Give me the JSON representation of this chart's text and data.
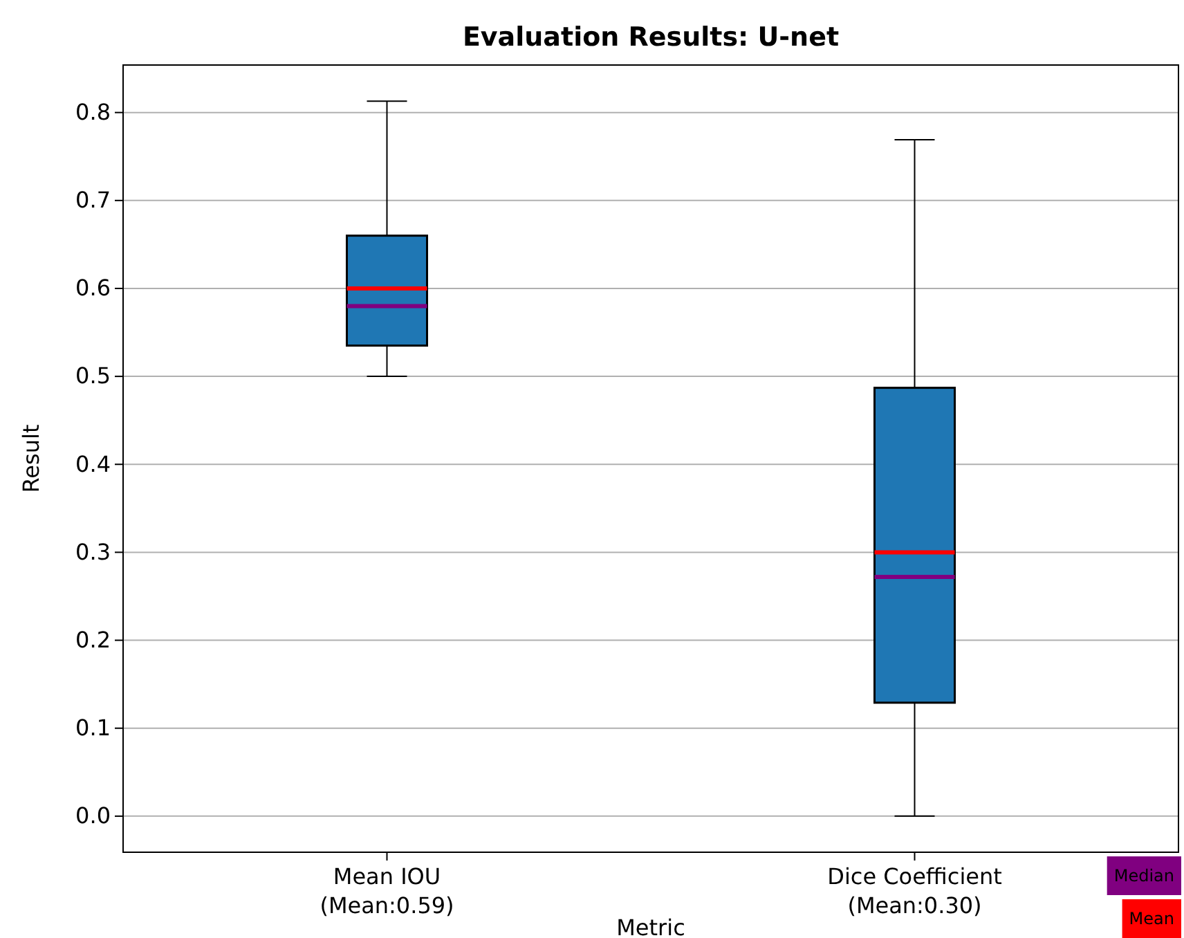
{
  "chart_data": {
    "type": "box",
    "title": "Evaluation Results: U-net",
    "xlabel": "Metric",
    "ylabel": "Result",
    "categories": [
      "Mean IOU\n(Mean:0.59)",
      "Dice Coefficient\n(Mean:0.30)"
    ],
    "boxes": [
      {
        "low": 0.5,
        "q1": 0.535,
        "median": 0.58,
        "q3": 0.66,
        "high": 0.813,
        "mean": 0.6
      },
      {
        "low": 0.0,
        "q1": 0.129,
        "median": 0.272,
        "q3": 0.487,
        "high": 0.769,
        "mean": 0.3
      }
    ],
    "color": "#1f77b4",
    "ylim": [
      -0.041,
      0.854
    ],
    "yticks": [
      {
        "value": 0,
        "label": "0.0"
      },
      {
        "value": 0.1,
        "label": "0.1"
      },
      {
        "value": 0.2,
        "label": "0.2"
      },
      {
        "value": 0.3,
        "label": "0.3"
      },
      {
        "value": 0.4,
        "label": "0.4"
      },
      {
        "value": 0.5,
        "label": "0.5"
      },
      {
        "value": 0.6,
        "label": "0.6"
      },
      {
        "value": 0.7,
        "label": "0.7"
      },
      {
        "value": 0.8,
        "label": "0.8"
      }
    ],
    "grid": "y",
    "annotations": [
      "Median",
      "Mean"
    ]
  }
}
